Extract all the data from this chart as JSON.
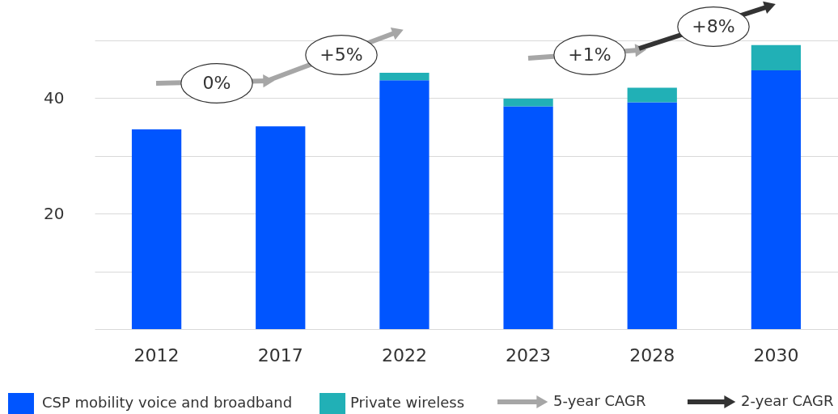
{
  "chart_data": {
    "type": "bar",
    "stacked": true,
    "categories": [
      "2012",
      "2017",
      "2022",
      "2023",
      "2028",
      "2030"
    ],
    "series": [
      {
        "name": "CSP mobility voice and broadband",
        "color": "#0055ff",
        "values": [
          34.6,
          35.1,
          43.1,
          38.6,
          39.3,
          44.8
        ]
      },
      {
        "name": "Private wireless",
        "color": "#21b0b6",
        "values": [
          null,
          null,
          1.3,
          1.3,
          2.5,
          4.4
        ]
      }
    ],
    "ylim": [
      0,
      57
    ],
    "yticks": [
      {
        "value": 0,
        "label": null
      },
      {
        "value": 10,
        "label": null
      },
      20,
      {
        "value": 30,
        "label": null
      },
      40,
      {
        "value": 50,
        "label": null
      }
    ],
    "grid": "y",
    "legend": "bottom",
    "annotations": [
      "0%",
      "+5%",
      "+1%",
      "+8%",
      "5-year CAGR",
      "2-year CAGR"
    ]
  }
}
